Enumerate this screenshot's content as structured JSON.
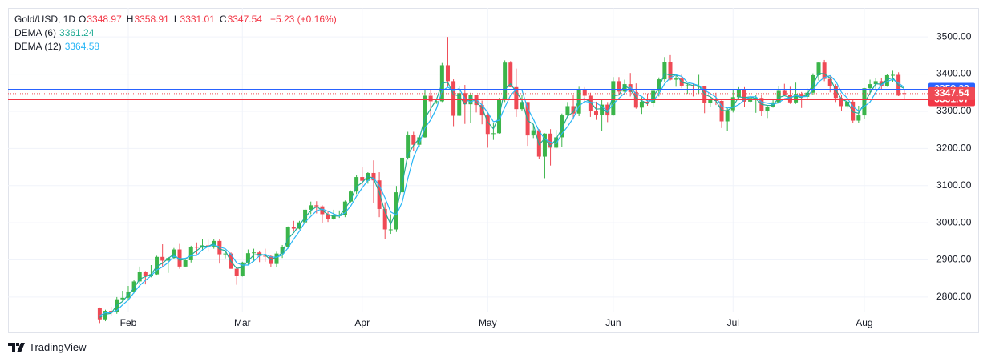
{
  "chart_data": {
    "type": "candlestick",
    "symbol": "Gold/USD, 1D",
    "ohlc_labels": [
      "O",
      "H",
      "L",
      "C"
    ],
    "change": "+5.23 (+0.16%)",
    "up_color": "#3bb54a",
    "down_color": "#ef4a55",
    "categories": [
      null,
      null,
      null,
      null,
      null,
      "Feb",
      null,
      null,
      null,
      null,
      null,
      null,
      null,
      null,
      null,
      null,
      null,
      null,
      null,
      null,
      null,
      null,
      null,
      null,
      null,
      "Mar",
      null,
      null,
      null,
      null,
      null,
      null,
      null,
      null,
      null,
      null,
      null,
      null,
      null,
      null,
      null,
      null,
      null,
      null,
      null,
      null,
      "Apr",
      null,
      null,
      null,
      null,
      null,
      null,
      null,
      null,
      null,
      null,
      null,
      null,
      null,
      null,
      null,
      null,
      null,
      null,
      null,
      null,
      null,
      "May",
      null,
      null,
      null,
      null,
      null,
      null,
      null,
      null,
      null,
      null,
      null,
      null,
      null,
      null,
      null,
      null,
      null,
      null,
      null,
      null,
      null,
      "Jun",
      null,
      null,
      null,
      null,
      null,
      null,
      null,
      null,
      null,
      null,
      null,
      null,
      null,
      null,
      null,
      null,
      null,
      null,
      null,
      null,
      "Jul",
      null,
      null,
      null,
      null,
      null,
      null,
      null,
      null,
      null,
      null,
      null,
      null,
      null,
      null,
      null,
      null,
      null,
      null,
      null,
      null,
      null,
      null,
      "Aug",
      null,
      null,
      null,
      null,
      null,
      null,
      null
    ],
    "ohlc": [
      [
        2770,
        2772,
        2730,
        2740
      ],
      [
        2740,
        2766,
        2735,
        2763
      ],
      [
        2763,
        2774,
        2750,
        2760
      ],
      [
        2760,
        2800,
        2755,
        2794
      ],
      [
        2794,
        2817,
        2789,
        2798
      ],
      [
        2798,
        2830,
        2790,
        2815
      ],
      [
        2815,
        2845,
        2810,
        2842
      ],
      [
        2842,
        2882,
        2834,
        2867
      ],
      [
        2867,
        2870,
        2834,
        2856
      ],
      [
        2856,
        2886,
        2853,
        2861
      ],
      [
        2861,
        2911,
        2860,
        2908
      ],
      [
        2908,
        2942,
        2880,
        2898
      ],
      [
        2898,
        2908,
        2865,
        2905
      ],
      [
        2905,
        2932,
        2903,
        2928
      ],
      [
        2928,
        2943,
        2876,
        2882
      ],
      [
        2882,
        2904,
        2880,
        2899
      ],
      [
        2899,
        2938,
        2893,
        2935
      ],
      [
        2935,
        2947,
        2915,
        2933
      ],
      [
        2933,
        2955,
        2925,
        2939
      ],
      [
        2939,
        2954,
        2922,
        2936
      ],
      [
        2936,
        2956,
        2930,
        2951
      ],
      [
        2951,
        2955,
        2890,
        2915
      ],
      [
        2915,
        2924,
        2904,
        2917
      ],
      [
        2917,
        2920,
        2876,
        2876
      ],
      [
        2876,
        2882,
        2833,
        2858
      ],
      [
        2858,
        2895,
        2855,
        2893
      ],
      [
        2893,
        2928,
        2886,
        2918
      ],
      [
        2918,
        2930,
        2895,
        2920
      ],
      [
        2920,
        2925,
        2894,
        2911
      ],
      [
        2911,
        2930,
        2895,
        2910
      ],
      [
        2910,
        2914,
        2880,
        2889
      ],
      [
        2889,
        2922,
        2880,
        2917
      ],
      [
        2917,
        2940,
        2905,
        2934
      ],
      [
        2934,
        2990,
        2930,
        2988
      ],
      [
        2988,
        3005,
        2978,
        2984
      ],
      [
        2984,
        3005,
        2982,
        3001
      ],
      [
        3001,
        3038,
        3000,
        3035
      ],
      [
        3035,
        3057,
        3023,
        3047
      ],
      [
        3047,
        3058,
        3025,
        3044
      ],
      [
        3044,
        3047,
        2999,
        3023
      ],
      [
        3023,
        3030,
        3002,
        3011
      ],
      [
        3011,
        3035,
        3008,
        3019
      ],
      [
        3019,
        3033,
        3013,
        3020
      ],
      [
        3020,
        3060,
        3015,
        3057
      ],
      [
        3057,
        3087,
        3055,
        3084
      ],
      [
        3084,
        3128,
        3077,
        3123
      ],
      [
        3123,
        3149,
        3100,
        3113
      ],
      [
        3113,
        3136,
        3105,
        3134
      ],
      [
        3134,
        3168,
        3054,
        3114
      ],
      [
        3114,
        3136,
        3015,
        3037
      ],
      [
        3037,
        3055,
        2957,
        2982
      ],
      [
        2982,
        3023,
        2970,
        2982
      ],
      [
        2982,
        3099,
        2975,
        3082
      ],
      [
        3082,
        3175,
        3073,
        3175
      ],
      [
        3175,
        3245,
        3170,
        3237
      ],
      [
        3237,
        3245,
        3194,
        3210
      ],
      [
        3210,
        3232,
        3205,
        3230
      ],
      [
        3230,
        3357,
        3229,
        3342
      ],
      [
        3342,
        3358,
        3284,
        3327
      ],
      [
        3327,
        3332,
        3320,
        3327
      ],
      [
        3327,
        3430,
        3325,
        3424
      ],
      [
        3424,
        3500,
        3366,
        3381
      ],
      [
        3381,
        3386,
        3260,
        3288
      ],
      [
        3288,
        3367,
        3287,
        3349
      ],
      [
        3349,
        3371,
        3266,
        3319
      ],
      [
        3319,
        3350,
        3268,
        3344
      ],
      [
        3344,
        3345,
        3297,
        3317
      ],
      [
        3317,
        3329,
        3265,
        3289
      ],
      [
        3289,
        3295,
        3202,
        3239
      ],
      [
        3239,
        3269,
        3223,
        3241
      ],
      [
        3241,
        3336,
        3240,
        3334
      ],
      [
        3334,
        3437,
        3325,
        3431
      ],
      [
        3431,
        3435,
        3365,
        3365
      ],
      [
        3365,
        3415,
        3285,
        3306
      ],
      [
        3306,
        3344,
        3300,
        3325
      ],
      [
        3325,
        3325,
        3207,
        3235
      ],
      [
        3235,
        3265,
        3228,
        3249
      ],
      [
        3249,
        3252,
        3172,
        3178
      ],
      [
        3178,
        3241,
        3120,
        3240
      ],
      [
        3240,
        3252,
        3154,
        3202
      ],
      [
        3202,
        3250,
        3200,
        3230
      ],
      [
        3230,
        3294,
        3204,
        3289
      ],
      [
        3289,
        3325,
        3285,
        3314
      ],
      [
        3314,
        3345,
        3278,
        3294
      ],
      [
        3294,
        3366,
        3287,
        3357
      ],
      [
        3357,
        3365,
        3325,
        3342
      ],
      [
        3342,
        3350,
        3285,
        3301
      ],
      [
        3301,
        3326,
        3277,
        3290
      ],
      [
        3290,
        3331,
        3246,
        3318
      ],
      [
        3318,
        3325,
        3271,
        3289
      ],
      [
        3289,
        3392,
        3288,
        3381
      ],
      [
        3381,
        3392,
        3343,
        3353
      ],
      [
        3353,
        3385,
        3345,
        3373
      ],
      [
        3373,
        3403,
        3340,
        3352
      ],
      [
        3352,
        3375,
        3307,
        3310
      ],
      [
        3310,
        3338,
        3293,
        3326
      ],
      [
        3326,
        3348,
        3315,
        3322
      ],
      [
        3322,
        3360,
        3313,
        3355
      ],
      [
        3355,
        3391,
        3340,
        3386
      ],
      [
        3386,
        3446,
        3380,
        3433
      ],
      [
        3433,
        3451,
        3383,
        3385
      ],
      [
        3385,
        3397,
        3366,
        3388
      ],
      [
        3388,
        3400,
        3362,
        3369
      ],
      [
        3369,
        3375,
        3347,
        3370
      ],
      [
        3370,
        3375,
        3340,
        3368
      ],
      [
        3368,
        3398,
        3347,
        3368
      ],
      [
        3368,
        3368,
        3295,
        3323
      ],
      [
        3323,
        3341,
        3312,
        3333
      ],
      [
        3333,
        3350,
        3317,
        3328
      ],
      [
        3328,
        3330,
        3255,
        3273
      ],
      [
        3273,
        3309,
        3247,
        3303
      ],
      [
        3303,
        3358,
        3297,
        3338
      ],
      [
        3338,
        3365,
        3330,
        3357
      ],
      [
        3357,
        3365,
        3311,
        3326
      ],
      [
        3326,
        3342,
        3322,
        3336
      ],
      [
        3336,
        3343,
        3296,
        3336
      ],
      [
        3336,
        3345,
        3287,
        3301
      ],
      [
        3301,
        3317,
        3282,
        3313
      ],
      [
        3313,
        3330,
        3310,
        3324
      ],
      [
        3324,
        3368,
        3321,
        3355
      ],
      [
        3355,
        3374,
        3341,
        3344
      ],
      [
        3344,
        3366,
        3320,
        3324
      ],
      [
        3324,
        3377,
        3320,
        3347
      ],
      [
        3347,
        3352,
        3309,
        3339
      ],
      [
        3339,
        3361,
        3332,
        3350
      ],
      [
        3350,
        3402,
        3345,
        3397
      ],
      [
        3397,
        3433,
        3383,
        3431
      ],
      [
        3431,
        3438,
        3381,
        3387
      ],
      [
        3387,
        3394,
        3351,
        3368
      ],
      [
        3368,
        3373,
        3325,
        3336
      ],
      [
        3336,
        3345,
        3301,
        3314
      ],
      [
        3314,
        3334,
        3308,
        3326
      ],
      [
        3326,
        3333,
        3268,
        3275
      ],
      [
        3275,
        3315,
        3268,
        3289
      ],
      [
        3289,
        3363,
        3280,
        3362
      ],
      [
        3362,
        3385,
        3346,
        3373
      ],
      [
        3373,
        3390,
        3357,
        3381
      ],
      [
        3381,
        3390,
        3356,
        3368
      ],
      [
        3368,
        3400,
        3366,
        3397
      ],
      [
        3397,
        3409,
        3378,
        3398
      ],
      [
        3398,
        3405,
        3341,
        3342.31
      ],
      [
        3348.97,
        3358.91,
        3331.01,
        3347.54
      ]
    ],
    "series": [
      {
        "name": "DEMA (6)",
        "color": "#22ab94",
        "values": [
          2745,
          2754,
          2756,
          2778,
          2788,
          2806,
          2824,
          2848,
          2855,
          2861,
          2883,
          2891,
          2904,
          2915,
          2899,
          2902,
          2913,
          2925,
          2937,
          2936,
          2944,
          2929,
          2925,
          2896,
          2877,
          2880,
          2897,
          2913,
          2915,
          2913,
          2900,
          2908,
          2919,
          2957,
          2973,
          2994,
          3014,
          3033,
          3043,
          3034,
          3022,
          3018,
          3018,
          3038,
          3061,
          3097,
          3108,
          3126,
          3119,
          3081,
          3029,
          2996,
          3032,
          3104,
          3183,
          3208,
          3227,
          3281,
          3307,
          3331,
          3376,
          3378,
          3345,
          3342,
          3319,
          3339,
          3324,
          3310,
          3271,
          3253,
          3287,
          3359,
          3374,
          3352,
          3330,
          3275,
          3265,
          3210,
          3227,
          3206,
          3226,
          3253,
          3287,
          3298,
          3331,
          3334,
          3325,
          3306,
          3307,
          3297,
          3342,
          3344,
          3370,
          3358,
          3336,
          3329,
          3320,
          3340,
          3362,
          3402,
          3397,
          3399,
          3378,
          3374,
          3369,
          3369,
          3346,
          3339,
          3328,
          3302,
          3302,
          3313,
          3339,
          3337,
          3339,
          3334,
          3319,
          3316,
          3316,
          3337,
          3342,
          3337,
          3341,
          3337,
          3347,
          3371,
          3402,
          3401,
          3389,
          3357,
          3333,
          3326,
          3298,
          3295,
          3322,
          3349,
          3374,
          3373,
          3386,
          3390,
          3370,
          3361.24
        ]
      },
      {
        "name": "DEMA (12)",
        "color": "#29b6f6",
        "values": [
          2750,
          2758,
          2758,
          2764,
          2779,
          2792,
          2812,
          2831,
          2845,
          2857,
          2873,
          2881,
          2893,
          2910,
          2903,
          2904,
          2911,
          2912,
          2927,
          2936,
          2940,
          2935,
          2930,
          2915,
          2892,
          2886,
          2886,
          2897,
          2911,
          2915,
          2908,
          2907,
          2913,
          2932,
          2956,
          2977,
          3002,
          3017,
          3032,
          3037,
          3031,
          3024,
          3018,
          3027,
          3045,
          3071,
          3094,
          3114,
          3121,
          3100,
          3067,
          3029,
          3021,
          3055,
          3119,
          3176,
          3213,
          3255,
          3277,
          3307,
          3355,
          3365,
          3355,
          3361,
          3334,
          3325,
          3332,
          3317,
          3297,
          3272,
          3276,
          3311,
          3343,
          3359,
          3357,
          3308,
          3279,
          3247,
          3226,
          3217,
          3213,
          3240,
          3259,
          3282,
          3314,
          3327,
          3324,
          3323,
          3313,
          3300,
          3320,
          3335,
          3349,
          3365,
          3347,
          3340,
          3328,
          3328,
          3347,
          3374,
          3390,
          3398,
          3394,
          3378,
          3374,
          3369,
          3357,
          3348,
          3338,
          3314,
          3309,
          3311,
          3318,
          3331,
          3339,
          3339,
          3325,
          3322,
          3319,
          3323,
          3334,
          3337,
          3343,
          3339,
          3340,
          3358,
          3379,
          3391,
          3396,
          3381,
          3351,
          3336,
          3313,
          3301,
          3313,
          3325,
          3351,
          3371,
          3380,
          3386,
          3376,
          3364.58
        ]
      }
    ],
    "price_lines": [
      {
        "value": 3359.28,
        "color": "#2962ff"
      },
      {
        "value": 3331.07,
        "color": "#f23645"
      }
    ],
    "ylim": [
      2761,
      3578
    ],
    "yticks": [
      {
        "value": 2800,
        "label": "2800.00"
      },
      {
        "value": 2900,
        "label": "2900.00"
      },
      {
        "value": 3000,
        "label": "3000.00"
      },
      {
        "value": 3100,
        "label": "3100.00"
      },
      {
        "value": 3200,
        "label": "3200.00"
      },
      {
        "value": 3300,
        "label": "3300.00"
      },
      {
        "value": 3400,
        "label": "3400.00"
      },
      {
        "value": 3500,
        "label": "3500.00"
      }
    ],
    "grid": true
  },
  "brand": "TradingView"
}
